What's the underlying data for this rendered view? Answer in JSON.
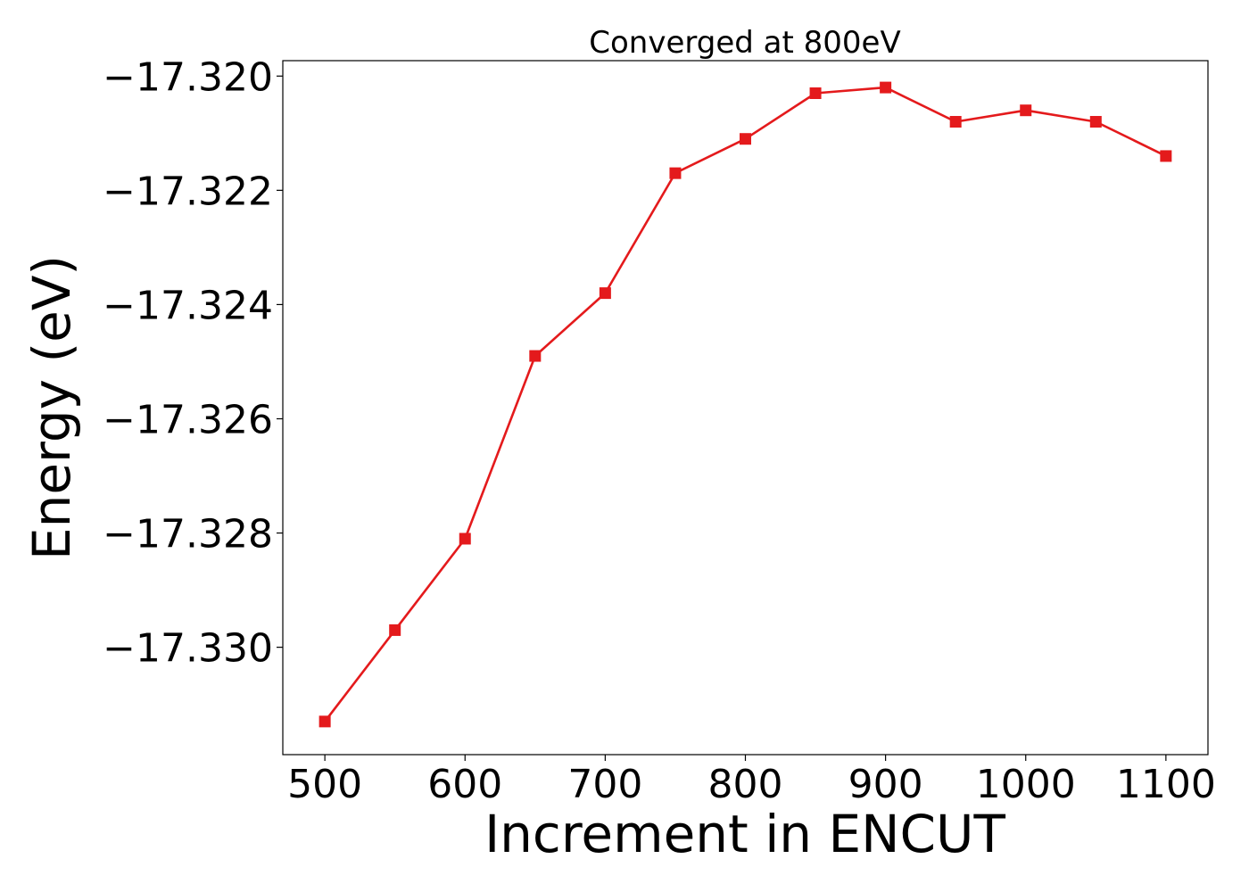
{
  "chart_data": {
    "type": "line",
    "title": "Converged at 800eV",
    "xlabel": "Increment in ENCUT",
    "ylabel": "Energy (eV)",
    "x": [
      500,
      550,
      600,
      650,
      700,
      750,
      800,
      850,
      900,
      950,
      1000,
      1050,
      1100
    ],
    "series": [
      {
        "values": [
          -17.3313,
          -17.3297,
          -17.3281,
          -17.3249,
          -17.3238,
          -17.3217,
          -17.3211,
          -17.3203,
          -17.3202,
          -17.3208,
          -17.3206,
          -17.3208,
          -17.3214
        ],
        "color": "#e41a1c",
        "marker": "square"
      }
    ],
    "xticks": [
      500,
      600,
      700,
      800,
      900,
      1000,
      1100
    ],
    "xtick_labels": [
      "500",
      "600",
      "700",
      "800",
      "900",
      "1000",
      "1100"
    ],
    "yticks": [
      -17.32,
      -17.322,
      -17.324,
      -17.326,
      -17.328,
      -17.33
    ],
    "ytick_labels": [
      "−17.320",
      "−17.322",
      "−17.324",
      "−17.326",
      "−17.328",
      "−17.330"
    ],
    "xlim": [
      470,
      1130
    ],
    "ylim": [
      -17.33188,
      -17.31973
    ],
    "grid": false,
    "legend": false
  }
}
